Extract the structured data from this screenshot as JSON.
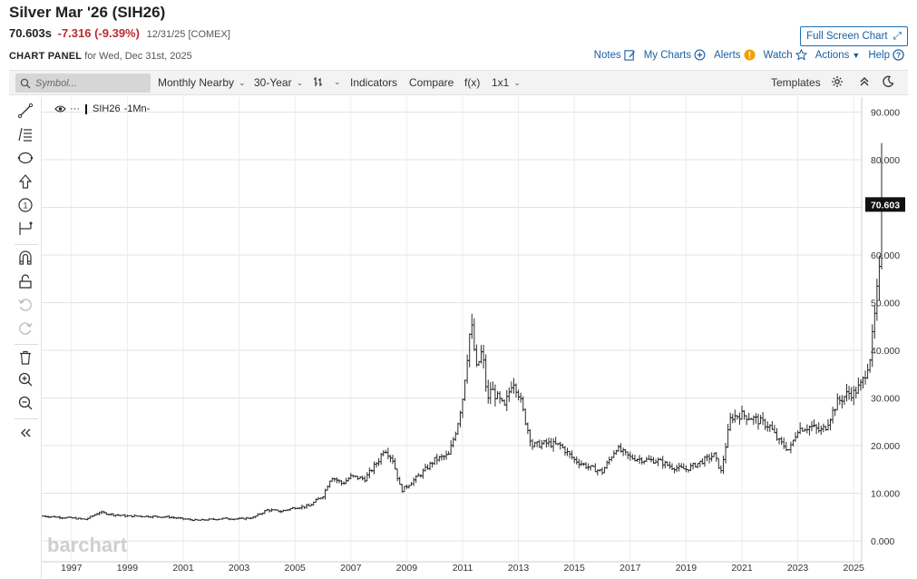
{
  "header": {
    "title": "Silver Mar '26 (SIH26)",
    "last": "70.603s",
    "change": "-7.316 (-9.39%)",
    "meta": "12/31/25 [COMEX]",
    "fullscreen_label": "Full Screen Chart"
  },
  "panel": {
    "label": "CHART PANEL",
    "date_text": "for Wed, Dec 31st, 2025"
  },
  "links": {
    "notes": "Notes",
    "my_charts": "My Charts",
    "alerts": "Alerts",
    "watch": "Watch",
    "actions": "Actions",
    "help": "Help"
  },
  "toolbar": {
    "search_placeholder": "Symbol...",
    "period": "Monthly Nearby",
    "range": "30-Year",
    "indicators": "Indicators",
    "compare": "Compare",
    "fx": "f(x)",
    "layout": "1x1",
    "templates": "Templates"
  },
  "legend": {
    "symbol": "SIH26",
    "interval": "-1Mn-"
  },
  "chart_data": {
    "type": "ohlc",
    "interval": "monthly",
    "watermark": "barchart",
    "last_value_label": "70.603",
    "x_ticks": [
      "1997",
      "1999",
      "2001",
      "2003",
      "2005",
      "2007",
      "2009",
      "2011",
      "2013",
      "2015",
      "2017",
      "2019",
      "2021",
      "2023",
      "2025"
    ],
    "y_ticks": [
      "0.000",
      "10.000",
      "20.000",
      "30.000",
      "40.000",
      "50.000",
      "60.000",
      "70.000",
      "80.000",
      "90.000"
    ],
    "ylim": [
      0,
      90
    ],
    "grid": true,
    "x_start": 1996.0,
    "series_anchors": [
      [
        1996.0,
        5.2
      ],
      [
        1996.5,
        5.0
      ],
      [
        1997.0,
        4.8
      ],
      [
        1997.5,
        4.5
      ],
      [
        1998.0,
        6.0
      ],
      [
        1998.5,
        5.5
      ],
      [
        1999.0,
        5.2
      ],
      [
        1999.5,
        5.2
      ],
      [
        2000.0,
        5.1
      ],
      [
        2000.5,
        5.0
      ],
      [
        2001.0,
        4.6
      ],
      [
        2001.5,
        4.3
      ],
      [
        2002.0,
        4.5
      ],
      [
        2002.5,
        4.7
      ],
      [
        2003.0,
        4.6
      ],
      [
        2003.5,
        4.9
      ],
      [
        2004.0,
        6.5
      ],
      [
        2004.5,
        6.2
      ],
      [
        2005.0,
        7.0
      ],
      [
        2005.5,
        7.3
      ],
      [
        2006.0,
        9.5
      ],
      [
        2006.3,
        13.5
      ],
      [
        2006.7,
        12.0
      ],
      [
        2007.0,
        13.5
      ],
      [
        2007.5,
        13.0
      ],
      [
        2008.0,
        17.0
      ],
      [
        2008.2,
        19.5
      ],
      [
        2008.5,
        17.0
      ],
      [
        2008.8,
        10.5
      ],
      [
        2009.0,
        11.5
      ],
      [
        2009.5,
        14.0
      ],
      [
        2010.0,
        17.0
      ],
      [
        2010.5,
        18.0
      ],
      [
        2010.8,
        24.0
      ],
      [
        2011.0,
        30.0
      ],
      [
        2011.3,
        46.0
      ],
      [
        2011.5,
        36.0
      ],
      [
        2011.7,
        40.0
      ],
      [
        2011.9,
        29.0
      ],
      [
        2012.0,
        32.0
      ],
      [
        2012.5,
        28.0
      ],
      [
        2012.8,
        34.0
      ],
      [
        2013.0,
        31.0
      ],
      [
        2013.3,
        24.0
      ],
      [
        2013.5,
        20.0
      ],
      [
        2014.0,
        20.5
      ],
      [
        2014.5,
        20.0
      ],
      [
        2015.0,
        17.0
      ],
      [
        2015.5,
        15.5
      ],
      [
        2016.0,
        14.5
      ],
      [
        2016.5,
        19.5
      ],
      [
        2017.0,
        17.5
      ],
      [
        2017.5,
        17.0
      ],
      [
        2018.0,
        16.8
      ],
      [
        2018.5,
        15.5
      ],
      [
        2019.0,
        15.0
      ],
      [
        2019.5,
        16.5
      ],
      [
        2020.0,
        18.0
      ],
      [
        2020.25,
        14.5
      ],
      [
        2020.6,
        26.0
      ],
      [
        2021.0,
        26.5
      ],
      [
        2021.5,
        25.5
      ],
      [
        2022.0,
        24.0
      ],
      [
        2022.3,
        21.0
      ],
      [
        2022.7,
        19.0
      ],
      [
        2023.0,
        23.5
      ],
      [
        2023.5,
        24.0
      ],
      [
        2023.8,
        23.0
      ],
      [
        2024.0,
        24.0
      ],
      [
        2024.4,
        29.0
      ],
      [
        2024.8,
        31.0
      ],
      [
        2025.0,
        31.0
      ],
      [
        2025.3,
        33.0
      ],
      [
        2025.6,
        39.0
      ],
      [
        2025.75,
        47.0
      ],
      [
        2025.85,
        53.0
      ],
      [
        2025.95,
        57.5
      ],
      [
        2026.0,
        70.6
      ]
    ]
  }
}
